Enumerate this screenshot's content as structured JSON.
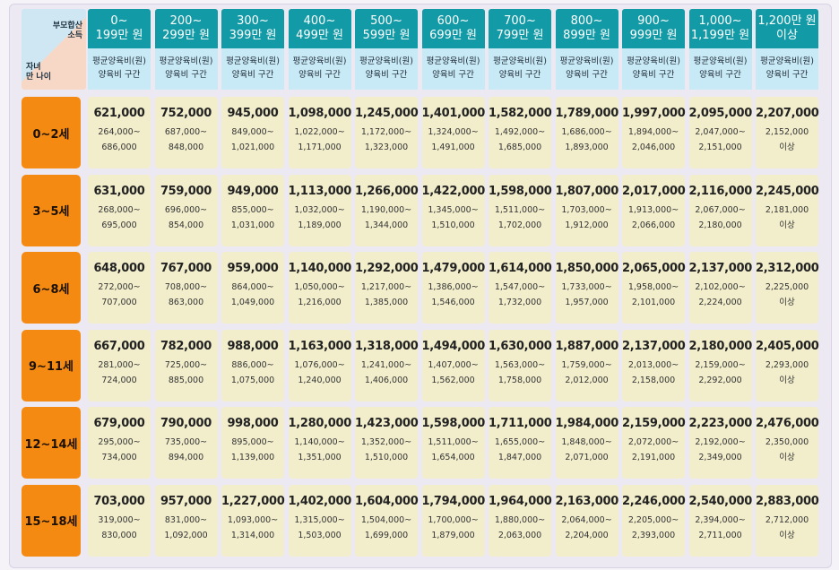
{
  "header": {
    "corner_top": [
      "부모합산",
      "소득"
    ],
    "corner_bottom": [
      "자녀",
      "만 나이"
    ],
    "sub_labels": [
      "평균양육비(원)",
      "양육비 구간"
    ],
    "columns": [
      [
        "0~",
        "199만 원"
      ],
      [
        "200~",
        "299만 원"
      ],
      [
        "300~",
        "399만 원"
      ],
      [
        "400~",
        "499만 원"
      ],
      [
        "500~",
        "599만 원"
      ],
      [
        "600~",
        "699만 원"
      ],
      [
        "700~",
        "799만 원"
      ],
      [
        "800~",
        "899만 원"
      ],
      [
        "900~",
        "999만 원"
      ],
      [
        "1,000~",
        "1,199만 원"
      ],
      [
        "1,200만 원",
        "이상"
      ]
    ]
  },
  "rows": [
    {
      "age": "0~2세",
      "cells": [
        {
          "avg": "621,000",
          "range": [
            "264,000~",
            "686,000"
          ]
        },
        {
          "avg": "752,000",
          "range": [
            "687,000~",
            "848,000"
          ]
        },
        {
          "avg": "945,000",
          "range": [
            "849,000~",
            "1,021,000"
          ]
        },
        {
          "avg": "1,098,000",
          "range": [
            "1,022,000~",
            "1,171,000"
          ]
        },
        {
          "avg": "1,245,000",
          "range": [
            "1,172,000~",
            "1,323,000"
          ]
        },
        {
          "avg": "1,401,000",
          "range": [
            "1,324,000~",
            "1,491,000"
          ]
        },
        {
          "avg": "1,582,000",
          "range": [
            "1,492,000~",
            "1,685,000"
          ]
        },
        {
          "avg": "1,789,000",
          "range": [
            "1,686,000~",
            "1,893,000"
          ]
        },
        {
          "avg": "1,997,000",
          "range": [
            "1,894,000~",
            "2,046,000"
          ]
        },
        {
          "avg": "2,095,000",
          "range": [
            "2,047,000~",
            "2,151,000"
          ]
        },
        {
          "avg": "2,207,000",
          "range": [
            "2,152,000",
            "이상"
          ]
        }
      ]
    },
    {
      "age": "3~5세",
      "cells": [
        {
          "avg": "631,000",
          "range": [
            "268,000~",
            "695,000"
          ]
        },
        {
          "avg": "759,000",
          "range": [
            "696,000~",
            "854,000"
          ]
        },
        {
          "avg": "949,000",
          "range": [
            "855,000~",
            "1,031,000"
          ]
        },
        {
          "avg": "1,113,000",
          "range": [
            "1,032,000~",
            "1,189,000"
          ]
        },
        {
          "avg": "1,266,000",
          "range": [
            "1,190,000~",
            "1,344,000"
          ]
        },
        {
          "avg": "1,422,000",
          "range": [
            "1,345,000~",
            "1,510,000"
          ]
        },
        {
          "avg": "1,598,000",
          "range": [
            "1,511,000~",
            "1,702,000"
          ]
        },
        {
          "avg": "1,807,000",
          "range": [
            "1,703,000~",
            "1,912,000"
          ]
        },
        {
          "avg": "2,017,000",
          "range": [
            "1,913,000~",
            "2,066,000"
          ]
        },
        {
          "avg": "2,116,000",
          "range": [
            "2,067,000~",
            "2,180,000"
          ]
        },
        {
          "avg": "2,245,000",
          "range": [
            "2,181,000",
            "이상"
          ]
        }
      ]
    },
    {
      "age": "6~8세",
      "cells": [
        {
          "avg": "648,000",
          "range": [
            "272,000~",
            "707,000"
          ]
        },
        {
          "avg": "767,000",
          "range": [
            "708,000~",
            "863,000"
          ]
        },
        {
          "avg": "959,000",
          "range": [
            "864,000~",
            "1,049,000"
          ]
        },
        {
          "avg": "1,140,000",
          "range": [
            "1,050,000~",
            "1,216,000"
          ]
        },
        {
          "avg": "1,292,000",
          "range": [
            "1,217,000~",
            "1,385,000"
          ]
        },
        {
          "avg": "1,479,000",
          "range": [
            "1,386,000~",
            "1,546,000"
          ]
        },
        {
          "avg": "1,614,000",
          "range": [
            "1,547,000~",
            "1,732,000"
          ]
        },
        {
          "avg": "1,850,000",
          "range": [
            "1,733,000~",
            "1,957,000"
          ]
        },
        {
          "avg": "2,065,000",
          "range": [
            "1,958,000~",
            "2,101,000"
          ]
        },
        {
          "avg": "2,137,000",
          "range": [
            "2,102,000~",
            "2,224,000"
          ]
        },
        {
          "avg": "2,312,000",
          "range": [
            "2,225,000",
            "이상"
          ]
        }
      ]
    },
    {
      "age": "9~11세",
      "cells": [
        {
          "avg": "667,000",
          "range": [
            "281,000~",
            "724,000"
          ]
        },
        {
          "avg": "782,000",
          "range": [
            "725,000~",
            "885,000"
          ]
        },
        {
          "avg": "988,000",
          "range": [
            "886,000~",
            "1,075,000"
          ]
        },
        {
          "avg": "1,163,000",
          "range": [
            "1,076,000~",
            "1,240,000"
          ]
        },
        {
          "avg": "1,318,000",
          "range": [
            "1,241,000~",
            "1,406,000"
          ]
        },
        {
          "avg": "1,494,000",
          "range": [
            "1,407,000~",
            "1,562,000"
          ]
        },
        {
          "avg": "1,630,000",
          "range": [
            "1,563,000~",
            "1,758,000"
          ]
        },
        {
          "avg": "1,887,000",
          "range": [
            "1,759,000~",
            "2,012,000"
          ]
        },
        {
          "avg": "2,137,000",
          "range": [
            "2,013,000~",
            "2,158,000"
          ]
        },
        {
          "avg": "2,180,000",
          "range": [
            "2,159,000~",
            "2,292,000"
          ]
        },
        {
          "avg": "2,405,000",
          "range": [
            "2,293,000",
            "이상"
          ]
        }
      ]
    },
    {
      "age": "12~14세",
      "cells": [
        {
          "avg": "679,000",
          "range": [
            "295,000~",
            "734,000"
          ]
        },
        {
          "avg": "790,000",
          "range": [
            "735,000~",
            "894,000"
          ]
        },
        {
          "avg": "998,000",
          "range": [
            "895,000~",
            "1,139,000"
          ]
        },
        {
          "avg": "1,280,000",
          "range": [
            "1,140,000~",
            "1,351,000"
          ]
        },
        {
          "avg": "1,423,000",
          "range": [
            "1,352,000~",
            "1,510,000"
          ]
        },
        {
          "avg": "1,598,000",
          "range": [
            "1,511,000~",
            "1,654,000"
          ]
        },
        {
          "avg": "1,711,000",
          "range": [
            "1,655,000~",
            "1,847,000"
          ]
        },
        {
          "avg": "1,984,000",
          "range": [
            "1,848,000~",
            "2,071,000"
          ]
        },
        {
          "avg": "2,159,000",
          "range": [
            "2,072,000~",
            "2,191,000"
          ]
        },
        {
          "avg": "2,223,000",
          "range": [
            "2,192,000~",
            "2,349,000"
          ]
        },
        {
          "avg": "2,476,000",
          "range": [
            "2,350,000",
            "이상"
          ]
        }
      ]
    },
    {
      "age": "15~18세",
      "cells": [
        {
          "avg": "703,000",
          "range": [
            "319,000~",
            "830,000"
          ]
        },
        {
          "avg": "957,000",
          "range": [
            "831,000~",
            "1,092,000"
          ]
        },
        {
          "avg": "1,227,000",
          "range": [
            "1,093,000~",
            "1,314,000"
          ]
        },
        {
          "avg": "1,402,000",
          "range": [
            "1,315,000~",
            "1,503,000"
          ]
        },
        {
          "avg": "1,604,000",
          "range": [
            "1,504,000~",
            "1,699,000"
          ]
        },
        {
          "avg": "1,794,000",
          "range": [
            "1,700,000~",
            "1,879,000"
          ]
        },
        {
          "avg": "1,964,000",
          "range": [
            "1,880,000~",
            "2,063,000"
          ]
        },
        {
          "avg": "2,163,000",
          "range": [
            "2,064,000~",
            "2,204,000"
          ]
        },
        {
          "avg": "2,246,000",
          "range": [
            "2,205,000~",
            "2,393,000"
          ]
        },
        {
          "avg": "2,540,000",
          "range": [
            "2,394,000~",
            "2,711,000"
          ]
        },
        {
          "avg": "2,883,000",
          "range": [
            "2,712,000",
            "이상"
          ]
        }
      ]
    }
  ]
}
